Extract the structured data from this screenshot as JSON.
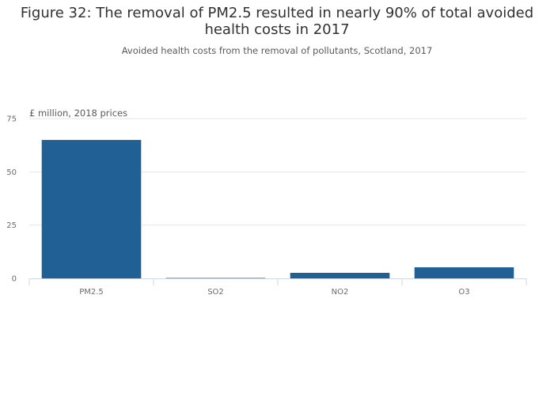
{
  "title": "Figure 32: The removal of PM2.5 resulted in nearly 90% of total avoided health costs in 2017",
  "subtitle": "Avoided health costs from the removal of pollutants, Scotland, 2017",
  "chart_data": {
    "type": "bar",
    "title": "Figure 32: The removal of PM2.5 resulted in nearly 90% of total avoided health costs in 2017",
    "subtitle": "Avoided health costs from the removal of pollutants, Scotland, 2017",
    "ylabel": "£ million, 2018 prices",
    "xlabel": "",
    "categories": [
      "PM2.5",
      "SO2",
      "NO2",
      "O3"
    ],
    "values": [
      65,
      0.2,
      2.6,
      5.2
    ],
    "ylim": [
      0,
      75
    ],
    "yticks": [
      0,
      25,
      50,
      75
    ],
    "grid": true,
    "legend": "none",
    "bar_color": "#206095",
    "grid_color": "#e6e6e6",
    "axis_color": "#d0d6e2"
  }
}
